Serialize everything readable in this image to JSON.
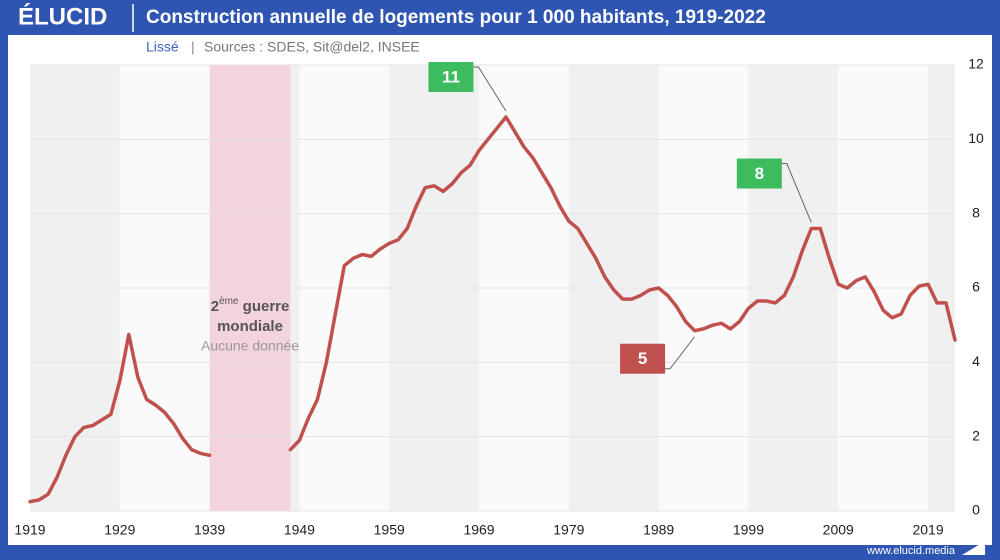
{
  "header": {
    "logo": "ÉLUCID",
    "title": "Construction annuelle de logements pour 1 000 habitants, 1919-2022"
  },
  "subtitle": {
    "smoothing": "Lissé",
    "separator": "|",
    "sources": "Sources : SDES, Sit@del2, INSEE"
  },
  "footer": {
    "url": "www.elucid.media"
  },
  "chart_data": {
    "type": "line",
    "x": [
      1919,
      1920,
      1921,
      1922,
      1923,
      1924,
      1925,
      1926,
      1927,
      1928,
      1929,
      1930,
      1931,
      1932,
      1933,
      1934,
      1935,
      1936,
      1937,
      1938,
      1939,
      1940,
      1941,
      1942,
      1943,
      1944,
      1945,
      1946,
      1947,
      1948,
      1949,
      1950,
      1951,
      1952,
      1953,
      1954,
      1955,
      1956,
      1957,
      1958,
      1959,
      1960,
      1961,
      1962,
      1963,
      1964,
      1965,
      1966,
      1967,
      1968,
      1969,
      1970,
      1971,
      1972,
      1973,
      1974,
      1975,
      1976,
      1977,
      1978,
      1979,
      1980,
      1981,
      1982,
      1983,
      1984,
      1985,
      1986,
      1987,
      1988,
      1989,
      1990,
      1991,
      1992,
      1993,
      1994,
      1995,
      1996,
      1997,
      1998,
      1999,
      2000,
      2001,
      2002,
      2003,
      2004,
      2005,
      2006,
      2007,
      2008,
      2009,
      2010,
      2011,
      2012,
      2013,
      2014,
      2015,
      2016,
      2017,
      2018,
      2019,
      2020,
      2021,
      2022
    ],
    "series": [
      {
        "name": "Logements pour 1 000 habitants",
        "color": "#c0504d",
        "values": [
          0.25,
          0.3,
          0.45,
          0.9,
          1.5,
          2.0,
          2.25,
          2.3,
          2.45,
          2.6,
          3.5,
          4.75,
          3.6,
          3.0,
          2.85,
          2.65,
          2.35,
          1.95,
          1.65,
          1.55,
          1.5,
          null,
          null,
          null,
          null,
          null,
          null,
          null,
          null,
          1.65,
          1.9,
          2.5,
          3.0,
          4.0,
          5.3,
          6.6,
          6.8,
          6.9,
          6.85,
          7.05,
          7.2,
          7.3,
          7.6,
          8.2,
          8.7,
          8.75,
          8.6,
          8.8,
          9.1,
          9.3,
          9.7,
          10.0,
          10.3,
          10.6,
          10.2,
          9.8,
          9.5,
          9.1,
          8.7,
          8.2,
          7.8,
          7.6,
          7.2,
          6.8,
          6.3,
          5.95,
          5.7,
          5.7,
          5.8,
          5.95,
          6.0,
          5.8,
          5.5,
          5.1,
          4.85,
          4.9,
          5.0,
          5.05,
          4.9,
          5.1,
          5.45,
          5.65,
          5.65,
          5.6,
          5.8,
          6.3,
          7.0,
          7.6,
          7.6,
          6.8,
          6.1,
          6.0,
          6.2,
          6.3,
          5.9,
          5.4,
          5.2,
          5.3,
          5.8,
          6.05,
          6.1,
          5.6,
          5.6,
          4.6
        ]
      }
    ],
    "xlim": [
      1919,
      2022
    ],
    "xticks": [
      1919,
      1929,
      1939,
      1949,
      1959,
      1969,
      1979,
      1989,
      1999,
      2009,
      2019
    ],
    "ylim": [
      0,
      12
    ],
    "yticks": [
      0,
      2,
      4,
      6,
      8,
      10,
      12
    ],
    "grid": true,
    "annotations": [
      {
        "text": "11",
        "x": 1972,
        "color": "#3dbb5f"
      },
      {
        "text": "8",
        "x": 2006,
        "color": "#3dbb5f"
      },
      {
        "text": "5",
        "x": 1993,
        "color": "#c0504d"
      }
    ],
    "gap_label": {
      "number": "2",
      "superscript": "ème",
      "rest": " guerre",
      "line2": "mondiale",
      "note": "Aucune donnée"
    }
  }
}
